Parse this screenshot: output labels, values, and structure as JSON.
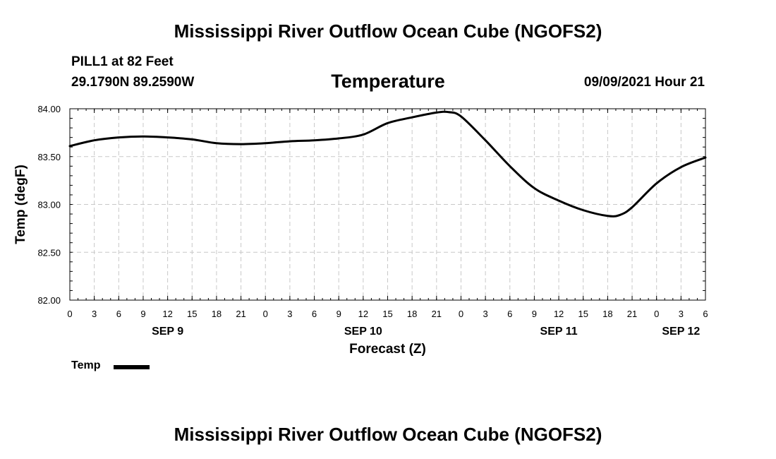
{
  "header": {
    "title": "Mississippi River Outflow Ocean Cube (NGOFS2)",
    "station": "PILL1 at 82 Feet",
    "coords": "29.1790N  89.2590W",
    "variable": "Temperature",
    "datetime": "09/09/2021 Hour 21"
  },
  "footer": {
    "title": "Mississippi River Outflow Ocean Cube (NGOFS2)"
  },
  "legend": {
    "label": "Temp"
  },
  "chart_data": {
    "type": "line",
    "title": "Temperature",
    "xlabel": "Forecast (Z)",
    "ylabel": "Temp (degF)",
    "x_unit": "hours from SEP 9 00Z",
    "xlim": [
      0,
      78
    ],
    "ylim": [
      82.0,
      84.0
    ],
    "yticks": [
      "82.00",
      "82.50",
      "83.00",
      "83.50",
      "84.00"
    ],
    "xticks": [
      "0",
      "3",
      "6",
      "9",
      "12",
      "15",
      "18",
      "21",
      "0",
      "3",
      "6",
      "9",
      "12",
      "15",
      "18",
      "21",
      "0",
      "3",
      "6",
      "9",
      "12",
      "15",
      "18",
      "21",
      "0",
      "3",
      "6"
    ],
    "day_labels": [
      {
        "hour": 12,
        "label": "SEP 9"
      },
      {
        "hour": 36,
        "label": "SEP 10"
      },
      {
        "hour": 60,
        "label": "SEP 11"
      },
      {
        "hour": 75,
        "label": "SEP 12"
      }
    ],
    "grid": true,
    "series": [
      {
        "name": "Temp",
        "color": "#000000",
        "x": [
          0,
          3,
          6,
          9,
          12,
          15,
          18,
          21,
          24,
          27,
          30,
          33,
          36,
          39,
          42,
          45,
          46.5,
          48,
          51,
          54,
          57,
          60,
          63,
          66,
          67.5,
          69,
          72,
          75,
          78
        ],
        "values": [
          83.61,
          83.67,
          83.7,
          83.71,
          83.7,
          83.68,
          83.64,
          83.63,
          83.64,
          83.66,
          83.67,
          83.69,
          83.73,
          83.85,
          83.91,
          83.96,
          83.965,
          83.92,
          83.67,
          83.4,
          83.17,
          83.04,
          82.94,
          82.88,
          82.89,
          82.97,
          83.22,
          83.39,
          83.49
        ]
      }
    ]
  }
}
